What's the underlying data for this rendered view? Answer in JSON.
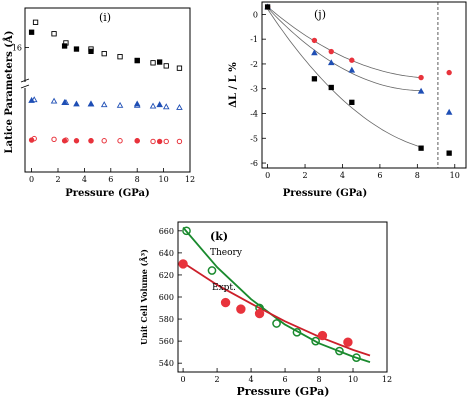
{
  "chart_data": [
    {
      "panel": "(i)",
      "type": "scatter",
      "xlabel": "Pressure (GPa)",
      "ylabel": "Latice Parameters (Å)",
      "xlim": [
        -0.5,
        12
      ],
      "x_ticks": [
        0,
        2,
        4,
        6,
        8,
        10,
        12
      ],
      "y_tick_label": "16",
      "axis_break": true,
      "series": [
        {
          "group": "a",
          "marker": "square",
          "filled": true,
          "color": "#000000",
          "x": [
            0,
            2.5,
            3.4,
            4.5,
            8,
            9.7
          ],
          "y": [
            18.0,
            16.2,
            15.8,
            15.5,
            14.3,
            14.1
          ]
        },
        {
          "group": "a",
          "marker": "square",
          "filled": false,
          "color": "#000000",
          "x": [
            0.3,
            1.7,
            2.6,
            4.5,
            5.5,
            6.7,
            8.0,
            9.2,
            10.2,
            11.2
          ],
          "y": [
            19.3,
            17.8,
            16.6,
            15.8,
            15.2,
            14.8,
            14.3,
            14.0,
            13.6,
            13.3
          ]
        },
        {
          "group": "b",
          "marker": "triangle",
          "filled": true,
          "color": "#1f4fb5",
          "x": [
            0,
            2.5,
            3.4,
            4.5,
            8,
            9.7
          ],
          "y": [
            7.75,
            7.6,
            7.5,
            7.5,
            7.5,
            7.45
          ]
        },
        {
          "group": "b",
          "marker": "triangle",
          "filled": false,
          "color": "#1f4fb5",
          "x": [
            0.2,
            1.7,
            2.6,
            4.5,
            5.5,
            6.7,
            8.0,
            9.2,
            10.2,
            11.2
          ],
          "y": [
            7.8,
            7.7,
            7.6,
            7.5,
            7.45,
            7.4,
            7.4,
            7.35,
            7.3,
            7.25
          ]
        },
        {
          "group": "c",
          "marker": "circle",
          "filled": true,
          "color": "#e8333c",
          "x": [
            0,
            2.5,
            3.4,
            4.5,
            8,
            9.7
          ],
          "y": [
            4.95,
            4.9,
            4.9,
            4.9,
            4.9,
            4.85
          ]
        },
        {
          "group": "c",
          "marker": "circle",
          "filled": false,
          "color": "#e8333c",
          "x": [
            0.2,
            1.7,
            2.6,
            4.5,
            5.5,
            6.7,
            8.0,
            9.2,
            10.2,
            11.2
          ],
          "y": [
            5.05,
            5.0,
            4.95,
            4.9,
            4.9,
            4.9,
            4.9,
            4.85,
            4.85,
            4.85
          ]
        }
      ]
    },
    {
      "panel": "(j)",
      "type": "scatter",
      "xlabel": "Pressure (GPa)",
      "ylabel": "ΔL / L %",
      "xlim": [
        -0.3,
        10.6
      ],
      "ylim": [
        -6.2,
        0.5
      ],
      "x_ticks": [
        0,
        2,
        4,
        6,
        8,
        10
      ],
      "y_ticks": [
        0,
        -1,
        -2,
        -3,
        -4,
        -5,
        -6
      ],
      "dashed_x": 9.1,
      "series": [
        {
          "marker": "circle",
          "filled": true,
          "color": "#e8333c",
          "x": [
            0,
            2.5,
            3.4,
            4.5,
            8.2,
            9.7
          ],
          "y": [
            0.3,
            -1.05,
            -1.5,
            -1.85,
            -2.55,
            -2.35
          ],
          "fit_points": 5
        },
        {
          "marker": "triangle",
          "filled": true,
          "color": "#1f4fb5",
          "x": [
            0,
            2.5,
            3.4,
            4.5,
            8.2,
            9.7
          ],
          "y": [
            0.3,
            -1.55,
            -1.95,
            -2.25,
            -3.1,
            -3.95
          ],
          "fit_points": 5
        },
        {
          "marker": "square",
          "filled": true,
          "color": "#000000",
          "x": [
            0,
            2.5,
            3.4,
            4.5,
            8.2,
            9.7
          ],
          "y": [
            0.3,
            -2.6,
            -2.95,
            -3.55,
            -5.4,
            -5.6
          ],
          "fit_points": 5
        }
      ]
    },
    {
      "panel": "(k)",
      "type": "scatter",
      "xlabel": "Pressure (GPa)",
      "ylabel": "Unit Cell Volume (Å³)",
      "xlim": [
        -0.3,
        12
      ],
      "ylim": [
        532,
        668
      ],
      "x_ticks": [
        0,
        2,
        4,
        6,
        8,
        10,
        12
      ],
      "y_ticks": [
        540,
        560,
        580,
        600,
        620,
        640,
        660
      ],
      "annotations": {
        "theory": "Theory",
        "expt": "Expt."
      },
      "series": [
        {
          "name": "Theory",
          "marker": "circle",
          "filled": false,
          "color": "#1a8a2e",
          "x": [
            0.2,
            1.7,
            4.5,
            5.5,
            6.7,
            7.8,
            9.2,
            10.2
          ],
          "y": [
            660,
            624,
            590,
            576,
            568,
            560,
            551,
            545
          ]
        },
        {
          "name": "Expt.",
          "marker": "circle",
          "filled": true,
          "color": "#e8333c",
          "x": [
            0,
            2.5,
            3.4,
            4.5,
            8.2,
            9.7
          ],
          "y": [
            630,
            595,
            589,
            585,
            565,
            559
          ]
        }
      ],
      "fit_lines": [
        {
          "name": "Theory",
          "color": "#1a8a2e",
          "x": [
            0,
            2,
            4,
            6,
            8,
            10,
            11
          ],
          "y": [
            663,
            627,
            598,
            575,
            558,
            546,
            541
          ]
        },
        {
          "name": "Expt.",
          "color": "#cc1f2a",
          "x": [
            0,
            2,
            4,
            6,
            8,
            10,
            11
          ],
          "y": [
            631,
            611,
            594,
            578,
            564,
            552,
            547
          ]
        }
      ]
    }
  ]
}
